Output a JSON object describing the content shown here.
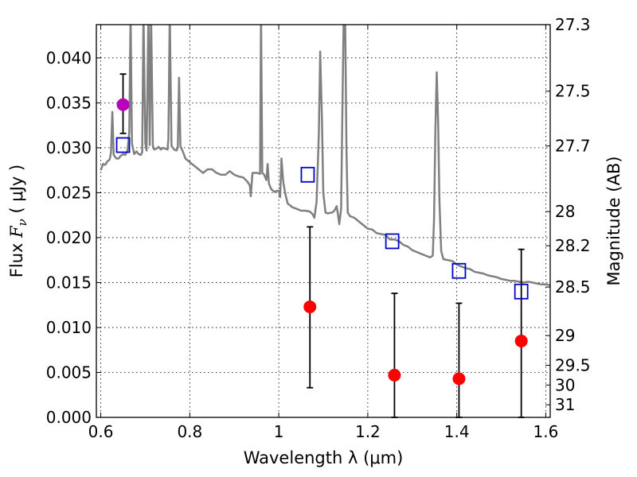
{
  "chart_data": {
    "type": "scatter",
    "xlabel": "Wavelength  λ (μm)",
    "ylabel_prefix": "Flux  ",
    "ylabel_symbol": "F",
    "ylabel_sub": "ν",
    "ylabel_suffix": "  ( μJy )",
    "y2label": "Magnitude (AB)",
    "xlim": [
      0.59,
      1.61
    ],
    "ylim": [
      0.0,
      0.0437
    ],
    "xticks": [
      0.6,
      0.8,
      1.0,
      1.2,
      1.4,
      1.6
    ],
    "xtick_labels": [
      "0.6",
      "0.8",
      "1",
      "1.2",
      "1.4",
      "1.6"
    ],
    "yticks": [
      0.0,
      0.005,
      0.01,
      0.015,
      0.02,
      0.025,
      0.03,
      0.035,
      0.04
    ],
    "ytick_labels": [
      "0.000",
      "0.005",
      "0.010",
      "0.015",
      "0.020",
      "0.025",
      "0.030",
      "0.035",
      "0.040"
    ],
    "y2ticks": [
      {
        "label": "27.3",
        "flux": 0.0437
      },
      {
        "label": "27.5",
        "flux": 0.0363
      },
      {
        "label": "27.7",
        "flux": 0.0302
      },
      {
        "label": "28",
        "flux": 0.0229
      },
      {
        "label": "28.2",
        "flux": 0.0191
      },
      {
        "label": "28.5",
        "flux": 0.0145
      },
      {
        "label": "29",
        "flux": 0.0091
      },
      {
        "label": "29.5",
        "flux": 0.0058
      },
      {
        "label": "30",
        "flux": 0.0036
      },
      {
        "label": "31",
        "flux": 0.0014
      }
    ],
    "grid": true,
    "colors": {
      "model": "#808080",
      "model_photometry": "#0000cc",
      "detection": "#bb00bb",
      "upper_limits": "#ff0000",
      "errorbar": "#000000"
    },
    "series": [
      {
        "kind": "line",
        "points": [
          [
            0.6,
            0.0275
          ],
          [
            0.605,
            0.0282
          ],
          [
            0.61,
            0.0281
          ],
          [
            0.615,
            0.0285
          ],
          [
            0.62,
            0.0287
          ],
          [
            0.623,
            0.0295
          ],
          [
            0.626,
            0.034
          ],
          [
            0.629,
            0.0292
          ],
          [
            0.635,
            0.0288
          ],
          [
            0.64,
            0.0288
          ],
          [
            0.645,
            0.0291
          ],
          [
            0.65,
            0.0293
          ],
          [
            0.655,
            0.0292
          ],
          [
            0.66,
            0.0297
          ],
          [
            0.664,
            0.0318
          ],
          [
            0.667,
            0.045
          ],
          [
            0.67,
            0.0305
          ],
          [
            0.675,
            0.0293
          ],
          [
            0.68,
            0.0296
          ],
          [
            0.685,
            0.0293
          ],
          [
            0.69,
            0.0292
          ],
          [
            0.693,
            0.0295
          ],
          [
            0.696,
            0.045
          ],
          [
            0.7,
            0.0305
          ],
          [
            0.703,
            0.0297
          ],
          [
            0.707,
            0.045
          ],
          [
            0.71,
            0.0303
          ],
          [
            0.713,
            0.045
          ],
          [
            0.717,
            0.0302
          ],
          [
            0.72,
            0.0298
          ],
          [
            0.725,
            0.0299
          ],
          [
            0.73,
            0.0301
          ],
          [
            0.735,
            0.0298
          ],
          [
            0.74,
            0.03
          ],
          [
            0.745,
            0.0299
          ],
          [
            0.75,
            0.0298
          ],
          [
            0.752,
            0.031
          ],
          [
            0.755,
            0.045
          ],
          [
            0.759,
            0.0302
          ],
          [
            0.765,
            0.0298
          ],
          [
            0.77,
            0.0297
          ],
          [
            0.773,
            0.03
          ],
          [
            0.776,
            0.0378
          ],
          [
            0.779,
            0.0302
          ],
          [
            0.785,
            0.0295
          ],
          [
            0.79,
            0.0288
          ],
          [
            0.8,
            0.0284
          ],
          [
            0.81,
            0.028
          ],
          [
            0.82,
            0.0276
          ],
          [
            0.83,
            0.0272
          ],
          [
            0.84,
            0.0276
          ],
          [
            0.85,
            0.0276
          ],
          [
            0.86,
            0.0272
          ],
          [
            0.87,
            0.027
          ],
          [
            0.88,
            0.027
          ],
          [
            0.89,
            0.0274
          ],
          [
            0.9,
            0.027
          ],
          [
            0.91,
            0.0268
          ],
          [
            0.92,
            0.0267
          ],
          [
            0.93,
            0.0262
          ],
          [
            0.935,
            0.0258
          ],
          [
            0.937,
            0.0246
          ],
          [
            0.941,
            0.0272
          ],
          [
            0.946,
            0.0272
          ],
          [
            0.952,
            0.0272
          ],
          [
            0.958,
            0.0271
          ],
          [
            0.96,
            0.045
          ],
          [
            0.963,
            0.0272
          ],
          [
            0.967,
            0.027
          ],
          [
            0.972,
            0.0264
          ],
          [
            0.975,
            0.0282
          ],
          [
            0.978,
            0.026
          ],
          [
            0.983,
            0.0254
          ],
          [
            0.99,
            0.0251
          ],
          [
            0.995,
            0.0252
          ],
          [
            1.0,
            0.0252
          ],
          [
            1.003,
            0.0245
          ],
          [
            1.006,
            0.0288
          ],
          [
            1.01,
            0.0262
          ],
          [
            1.015,
            0.0248
          ],
          [
            1.02,
            0.0238
          ],
          [
            1.025,
            0.0236
          ],
          [
            1.03,
            0.0234
          ],
          [
            1.04,
            0.0232
          ],
          [
            1.05,
            0.023
          ],
          [
            1.06,
            0.023
          ],
          [
            1.07,
            0.0229
          ],
          [
            1.076,
            0.0226
          ],
          [
            1.08,
            0.0222
          ],
          [
            1.085,
            0.024
          ],
          [
            1.09,
            0.0315
          ],
          [
            1.093,
            0.0407
          ],
          [
            1.097,
            0.0333
          ],
          [
            1.1,
            0.025
          ],
          [
            1.105,
            0.0228
          ],
          [
            1.11,
            0.0227
          ],
          [
            1.12,
            0.0228
          ],
          [
            1.125,
            0.023
          ],
          [
            1.13,
            0.0235
          ],
          [
            1.133,
            0.0226
          ],
          [
            1.136,
            0.0215
          ],
          [
            1.14,
            0.0232
          ],
          [
            1.143,
            0.034
          ],
          [
            1.146,
            0.045
          ],
          [
            1.149,
            0.045
          ],
          [
            1.152,
            0.03
          ],
          [
            1.155,
            0.0228
          ],
          [
            1.16,
            0.0224
          ],
          [
            1.17,
            0.0222
          ],
          [
            1.18,
            0.0218
          ],
          [
            1.19,
            0.0214
          ],
          [
            1.2,
            0.021
          ],
          [
            1.21,
            0.0209
          ],
          [
            1.22,
            0.0205
          ],
          [
            1.23,
            0.0204
          ],
          [
            1.24,
            0.0203
          ],
          [
            1.25,
            0.0198
          ],
          [
            1.26,
            0.0198
          ],
          [
            1.27,
            0.0196
          ],
          [
            1.28,
            0.0192
          ],
          [
            1.29,
            0.019
          ],
          [
            1.3,
            0.0186
          ],
          [
            1.31,
            0.0184
          ],
          [
            1.32,
            0.0182
          ],
          [
            1.33,
            0.018
          ],
          [
            1.34,
            0.0178
          ],
          [
            1.346,
            0.018
          ],
          [
            1.349,
            0.022
          ],
          [
            1.352,
            0.032
          ],
          [
            1.355,
            0.0384
          ],
          [
            1.358,
            0.033
          ],
          [
            1.361,
            0.024
          ],
          [
            1.365,
            0.0185
          ],
          [
            1.37,
            0.0176
          ],
          [
            1.38,
            0.0175
          ],
          [
            1.39,
            0.0174
          ],
          [
            1.4,
            0.017
          ],
          [
            1.41,
            0.0168
          ],
          [
            1.42,
            0.0166
          ],
          [
            1.43,
            0.0165
          ],
          [
            1.44,
            0.0162
          ],
          [
            1.45,
            0.0161
          ],
          [
            1.46,
            0.016
          ],
          [
            1.47,
            0.0158
          ],
          [
            1.48,
            0.0157
          ],
          [
            1.49,
            0.0156
          ],
          [
            1.5,
            0.0154
          ],
          [
            1.51,
            0.0153
          ],
          [
            1.52,
            0.0152
          ],
          [
            1.53,
            0.0152
          ],
          [
            1.54,
            0.0151
          ],
          [
            1.55,
            0.015
          ],
          [
            1.56,
            0.0151
          ],
          [
            1.57,
            0.015
          ],
          [
            1.58,
            0.0149
          ],
          [
            1.59,
            0.0148
          ],
          [
            1.6,
            0.0148
          ],
          [
            1.61,
            0.0147
          ]
        ]
      },
      {
        "kind": "open-squares",
        "points": [
          {
            "x": 0.65,
            "y": 0.0303
          },
          {
            "x": 1.065,
            "y": 0.027
          },
          {
            "x": 1.255,
            "y": 0.0196
          },
          {
            "x": 1.405,
            "y": 0.0163
          },
          {
            "x": 1.545,
            "y": 0.014
          }
        ]
      },
      {
        "kind": "filled-circles",
        "points": [
          {
            "x": 0.65,
            "y": 0.0348,
            "err_low": 0.0316,
            "err_high": 0.0382,
            "color": "#bb00bb"
          },
          {
            "x": 1.07,
            "y": 0.0123,
            "err_low": 0.0033,
            "err_high": 0.0212,
            "color": "#ff0000"
          },
          {
            "x": 1.26,
            "y": 0.0047,
            "err_low": 0.0,
            "err_high": 0.0138,
            "color": "#ff0000"
          },
          {
            "x": 1.405,
            "y": 0.0043,
            "err_low": 0.0,
            "err_high": 0.0127,
            "color": "#ff0000"
          },
          {
            "x": 1.545,
            "y": 0.0085,
            "err_low": 0.0,
            "err_high": 0.0187,
            "color": "#ff0000"
          }
        ]
      }
    ]
  }
}
